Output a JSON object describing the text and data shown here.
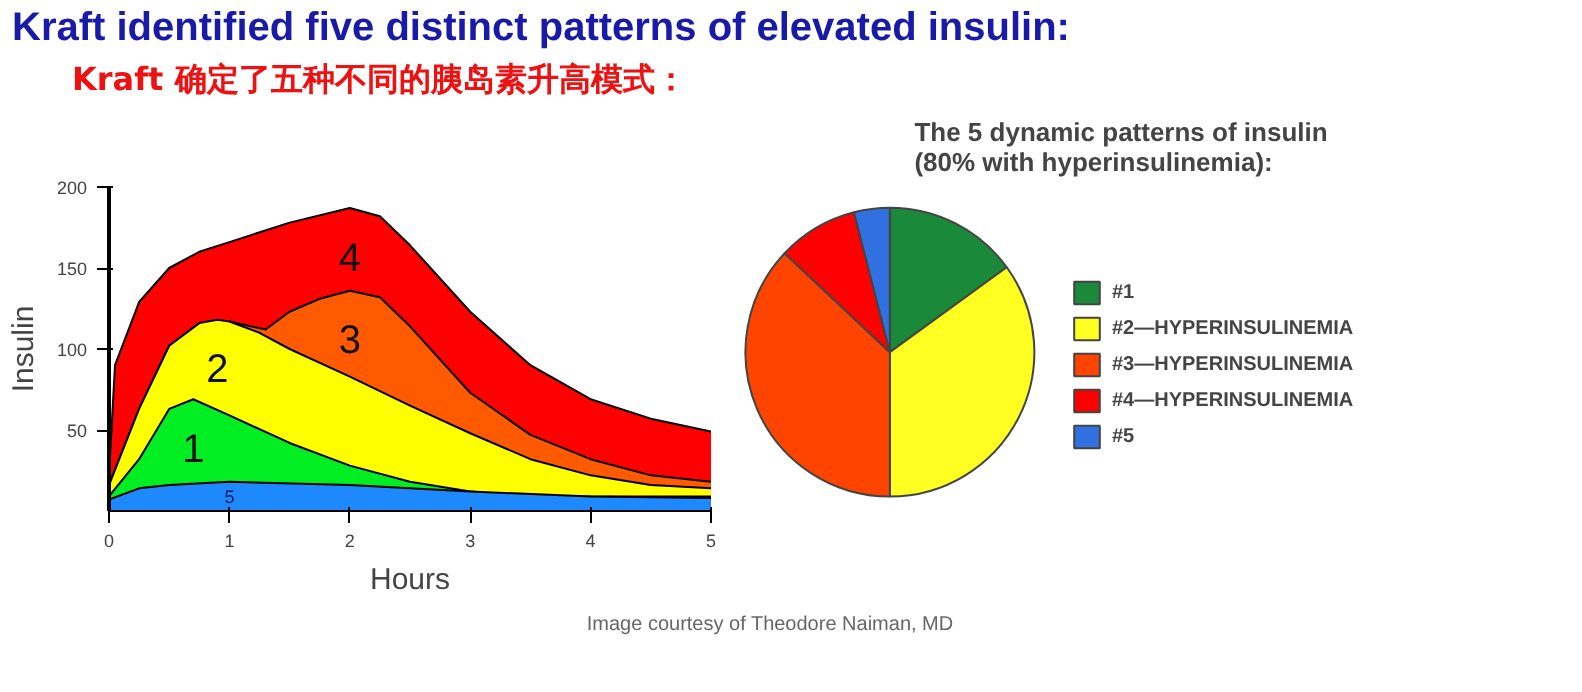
{
  "chart_data": [
    {
      "type": "area",
      "title": "Kraft identified five distinct patterns of elevated insulin:",
      "subtitle": "Kraft 确定了五种不同的胰岛素升高模式：",
      "xlabel": "Hours",
      "ylabel": "Insulin",
      "xlim": [
        0,
        5
      ],
      "ylim": [
        0,
        200
      ],
      "xticks": [
        0,
        1,
        2,
        3,
        4,
        5
      ],
      "yticks": [
        50,
        100,
        150,
        200
      ],
      "grid": false,
      "legend": false,
      "series": [
        {
          "name": "4",
          "color": "#ff0000",
          "x": [
            0,
            0.05,
            0.25,
            0.5,
            0.75,
            1,
            1.5,
            2,
            2.25,
            2.5,
            3,
            3.5,
            4,
            4.5,
            5
          ],
          "values": [
            22,
            90,
            129,
            150,
            160,
            166,
            178,
            187,
            182,
            164,
            123,
            90,
            69,
            57,
            49
          ]
        },
        {
          "name": "3",
          "color": "#ff5a00",
          "x": [
            0,
            0.25,
            0.5,
            0.75,
            1,
            1.3,
            1.5,
            1.75,
            2,
            2.25,
            2.5,
            3,
            3.5,
            4,
            4.5,
            5
          ],
          "values": [
            16,
            63,
            102,
            116,
            117,
            112,
            123,
            131,
            136,
            132,
            114,
            73,
            47,
            32,
            22,
            18
          ]
        },
        {
          "name": "2",
          "color": "#ffff00",
          "x": [
            0,
            0.25,
            0.5,
            0.75,
            0.9,
            1,
            1.25,
            1.5,
            2,
            2.5,
            3,
            3.5,
            4,
            4.5,
            5
          ],
          "values": [
            16,
            63,
            102,
            116,
            118,
            117,
            110,
            100,
            83,
            65,
            48,
            32,
            22,
            16,
            14
          ]
        },
        {
          "name": "1",
          "color": "#00ee22",
          "x": [
            0,
            0.25,
            0.5,
            0.7,
            1,
            1.5,
            2,
            2.5,
            3,
            3.5,
            4,
            5
          ],
          "values": [
            9,
            32,
            63,
            69,
            59,
            42,
            28,
            18,
            12,
            9,
            9,
            9
          ]
        },
        {
          "name": "5",
          "color": "#1e88ff",
          "x": [
            0,
            0.25,
            0.5,
            1,
            2,
            3,
            4,
            5
          ],
          "values": [
            7,
            14,
            16,
            18,
            16,
            12,
            9,
            8
          ]
        }
      ]
    },
    {
      "type": "pie",
      "title": "The 5 dynamic patterns of insulin\n(80% with hyperinsulinemia):",
      "legend": "right",
      "categories": [
        "#1",
        "#2—HYPERINSULINEMIA",
        "#3—HYPERINSULINEMIA",
        "#4—HYPERINSULINEMIA",
        "#5"
      ],
      "values": [
        15,
        35,
        37,
        9,
        4
      ],
      "colors": [
        "#1a8a3a",
        "#ffff22",
        "#ff4400",
        "#ff0000",
        "#3070e0"
      ],
      "annotations": [
        "Image courtesy of Theodore Naiman, MD"
      ]
    }
  ]
}
